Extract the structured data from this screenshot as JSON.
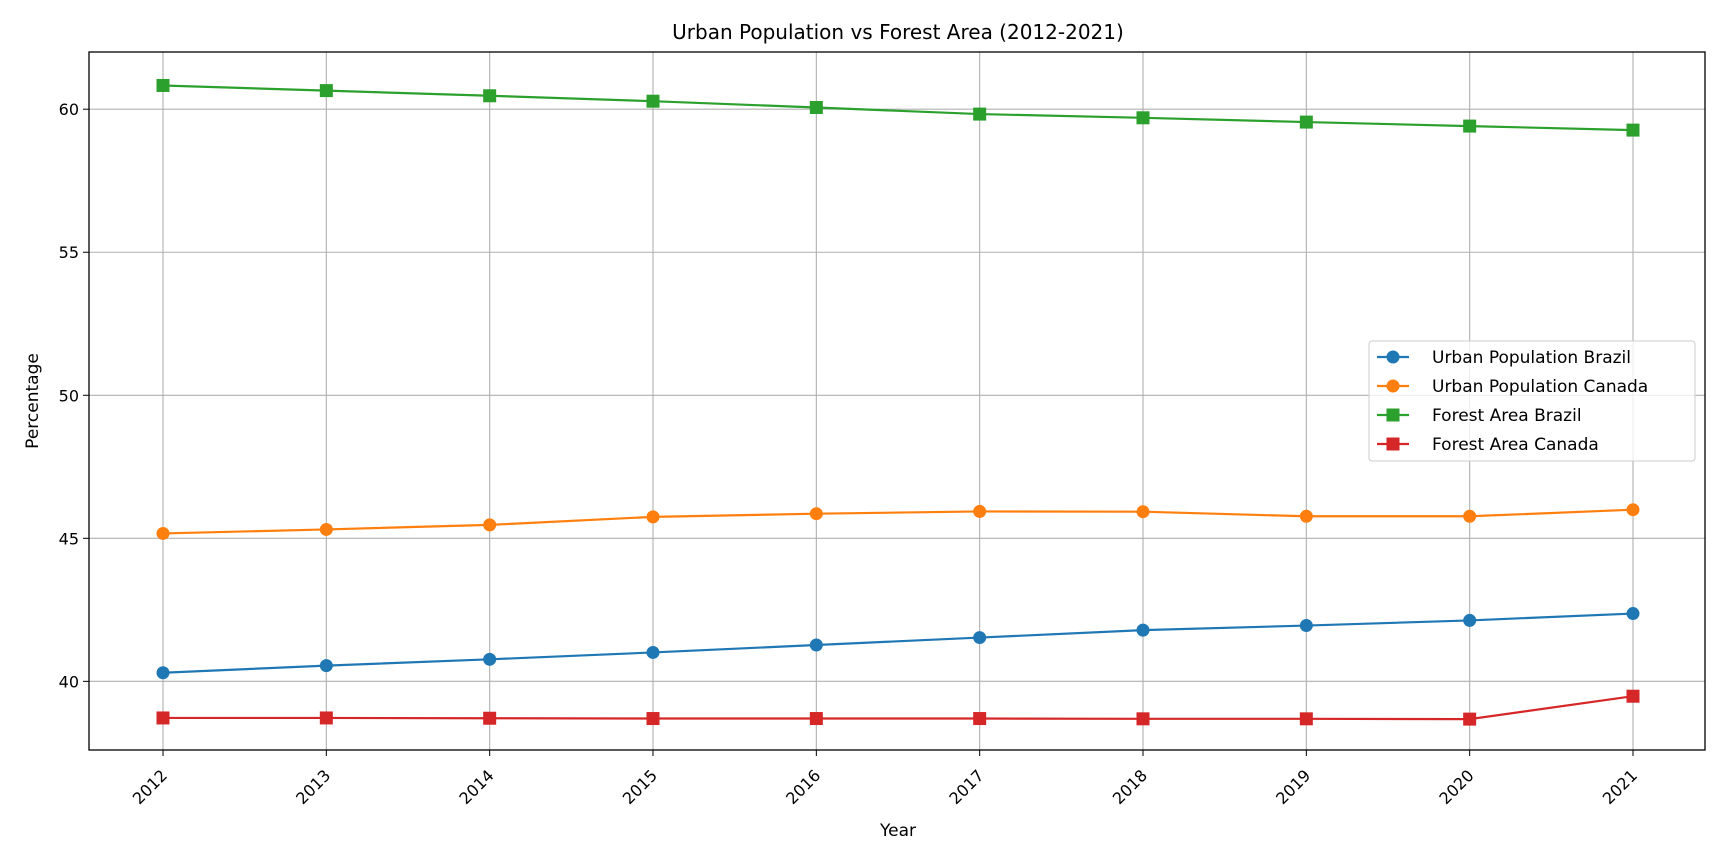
{
  "chart_data": {
    "type": "line",
    "title": "Urban Population vs Forest Area (2012-2021)",
    "xlabel": "Year",
    "ylabel": "Percentage",
    "x": [
      "2012",
      "2013",
      "2014",
      "2015",
      "2016",
      "2017",
      "2018",
      "2019",
      "2020",
      "2021"
    ],
    "y_ticks": [
      "40",
      "45",
      "50",
      "55",
      "60"
    ],
    "ylim": [
      37.6,
      62.0
    ],
    "grid": true,
    "legend_position": "center-right",
    "series": [
      {
        "name": "Urban Population Brazil",
        "color": "#1f77b4",
        "marker": "circle",
        "values": [
          40.3,
          40.55,
          40.77,
          41.01,
          41.27,
          41.53,
          41.79,
          41.95,
          42.13,
          42.37
        ]
      },
      {
        "name": "Urban Population Canada",
        "color": "#ff7f0e",
        "marker": "circle",
        "values": [
          45.17,
          45.31,
          45.47,
          45.75,
          45.86,
          45.94,
          45.93,
          45.77,
          45.77,
          46.0
        ]
      },
      {
        "name": "Forest Area Brazil",
        "color": "#2ca02c",
        "marker": "square",
        "values": [
          60.83,
          60.65,
          60.47,
          60.28,
          60.06,
          59.83,
          59.7,
          59.55,
          59.41,
          59.27
        ]
      },
      {
        "name": "Forest Area Canada",
        "color": "#d62728",
        "marker": "square",
        "values": [
          38.72,
          38.72,
          38.71,
          38.7,
          38.7,
          38.7,
          38.69,
          38.69,
          38.68,
          39.48
        ]
      }
    ]
  }
}
